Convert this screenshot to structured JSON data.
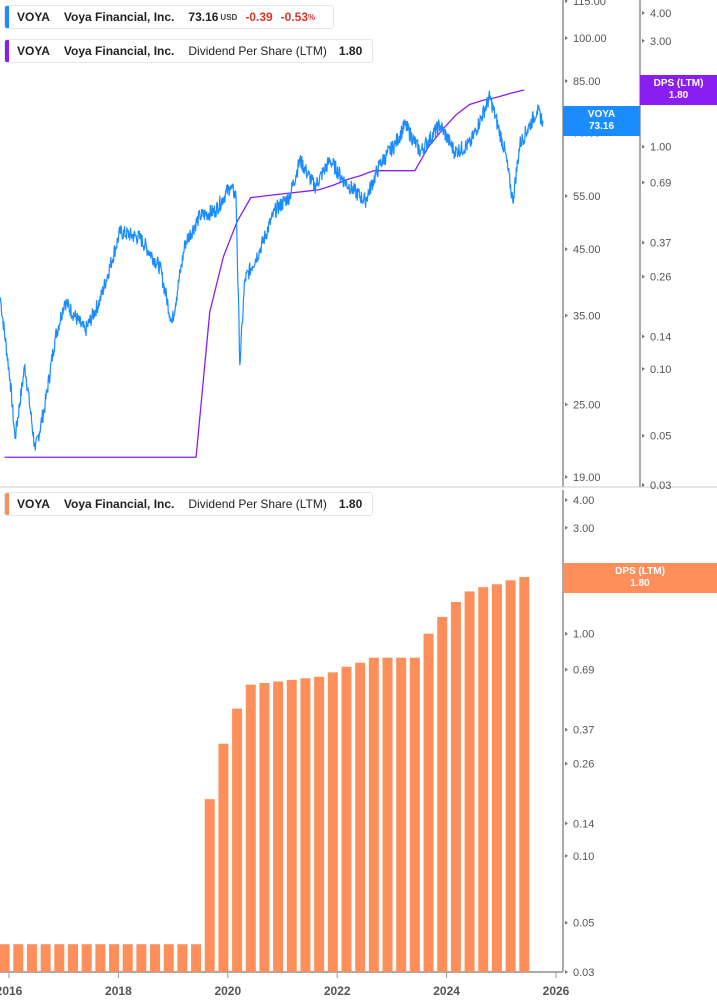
{
  "legends": {
    "price": {
      "ticker": "VOYA",
      "company": "Voya Financial, Inc.",
      "price": "73.16",
      "currency": "USD",
      "change": "-0.39",
      "change_pct": "-0.53",
      "pct_sign": "%"
    },
    "dps_top": {
      "ticker": "VOYA",
      "company": "Voya Financial, Inc.",
      "metric": "Dividend Per Share (LTM)",
      "value": "1.80"
    },
    "dps_bottom": {
      "ticker": "VOYA",
      "company": "Voya Financial, Inc.",
      "metric": "Dividend Per Share (LTM)",
      "value": "1.80"
    }
  },
  "tags": {
    "price": {
      "label": "VOYA",
      "value": "73.16"
    },
    "dps_top": {
      "label": "DPS (LTM)",
      "value": "1.80"
    },
    "dps_bottom": {
      "label": "DPS (LTM)",
      "value": "1.80"
    }
  },
  "colors": {
    "price": "#1a8cff",
    "dps_line": "#8a1ef0",
    "dps_bar": "#ff8f5a",
    "down": "#d9342b"
  },
  "chart_data": [
    {
      "type": "line",
      "scale": "log",
      "ylim": [
        19,
        115
      ],
      "yticks": [
        "115.00",
        "100.00",
        "85.00",
        "70.00",
        "55.00",
        "45.00",
        "35.00",
        "25.00",
        "19.00"
      ],
      "xticks": [
        "2016",
        "2018",
        "2020",
        "2022",
        "2024",
        "2026"
      ],
      "series": [
        {
          "name": "VOYA",
          "x": [
            2015.84,
            2016.02,
            2016.11,
            2016.29,
            2016.48,
            2016.66,
            2016.84,
            2017.02,
            2017.39,
            2017.66,
            2018.03,
            2018.39,
            2018.76,
            2018.98,
            2019.22,
            2019.49,
            2019.77,
            2020.04,
            2020.15,
            2020.22,
            2020.31,
            2020.59,
            2020.86,
            2021.13,
            2021.32,
            2021.59,
            2021.87,
            2022.14,
            2022.51,
            2022.78,
            2023.06,
            2023.24,
            2023.52,
            2023.88,
            2024.15,
            2024.43,
            2024.79,
            2025.07,
            2025.21,
            2025.34,
            2025.52,
            2025.65,
            2025.76
          ],
          "y": [
            37.5,
            27.5,
            22,
            29,
            21,
            25,
            32,
            37,
            33,
            37,
            48,
            47,
            42,
            34,
            46,
            51,
            52,
            57,
            55,
            29,
            40,
            45,
            52,
            55,
            63,
            57,
            63,
            58,
            54,
            62,
            67,
            72,
            65,
            72,
            65,
            67,
            80,
            65,
            54,
            67,
            72,
            76,
            73.16
          ]
        },
        {
          "name": "Dividend Per Share (LTM)",
          "axis": "right",
          "ylim": [
            0.03,
            4
          ],
          "yticks": [
            "4.00",
            "3.00",
            "1.00",
            "0.69",
            "0.37",
            "0.26",
            "0.14",
            "0.10",
            "0.05",
            "0.03"
          ]
        }
      ]
    },
    {
      "type": "bar",
      "scale": "log",
      "ylim": [
        0.03,
        4
      ],
      "yticks": [
        "4.00",
        "3.00",
        "2.00",
        "1.00",
        "0.69",
        "0.37",
        "0.26",
        "0.14",
        "0.10",
        "0.05",
        "0.03"
      ],
      "xticks": [
        "2016",
        "2018",
        "2020",
        "2022",
        "2024",
        "2026"
      ],
      "x_start": "2015-Q4",
      "frequency": "quarterly",
      "values": [
        0.04,
        0.04,
        0.04,
        0.04,
        0.04,
        0.04,
        0.04,
        0.04,
        0.04,
        0.04,
        0.04,
        0.04,
        0.04,
        0.04,
        0.04,
        0.18,
        0.32,
        0.46,
        0.59,
        0.6,
        0.61,
        0.62,
        0.63,
        0.64,
        0.67,
        0.71,
        0.74,
        0.78,
        0.78,
        0.78,
        0.78,
        1.0,
        1.19,
        1.39,
        1.55,
        1.62,
        1.67,
        1.74,
        1.8
      ]
    }
  ]
}
